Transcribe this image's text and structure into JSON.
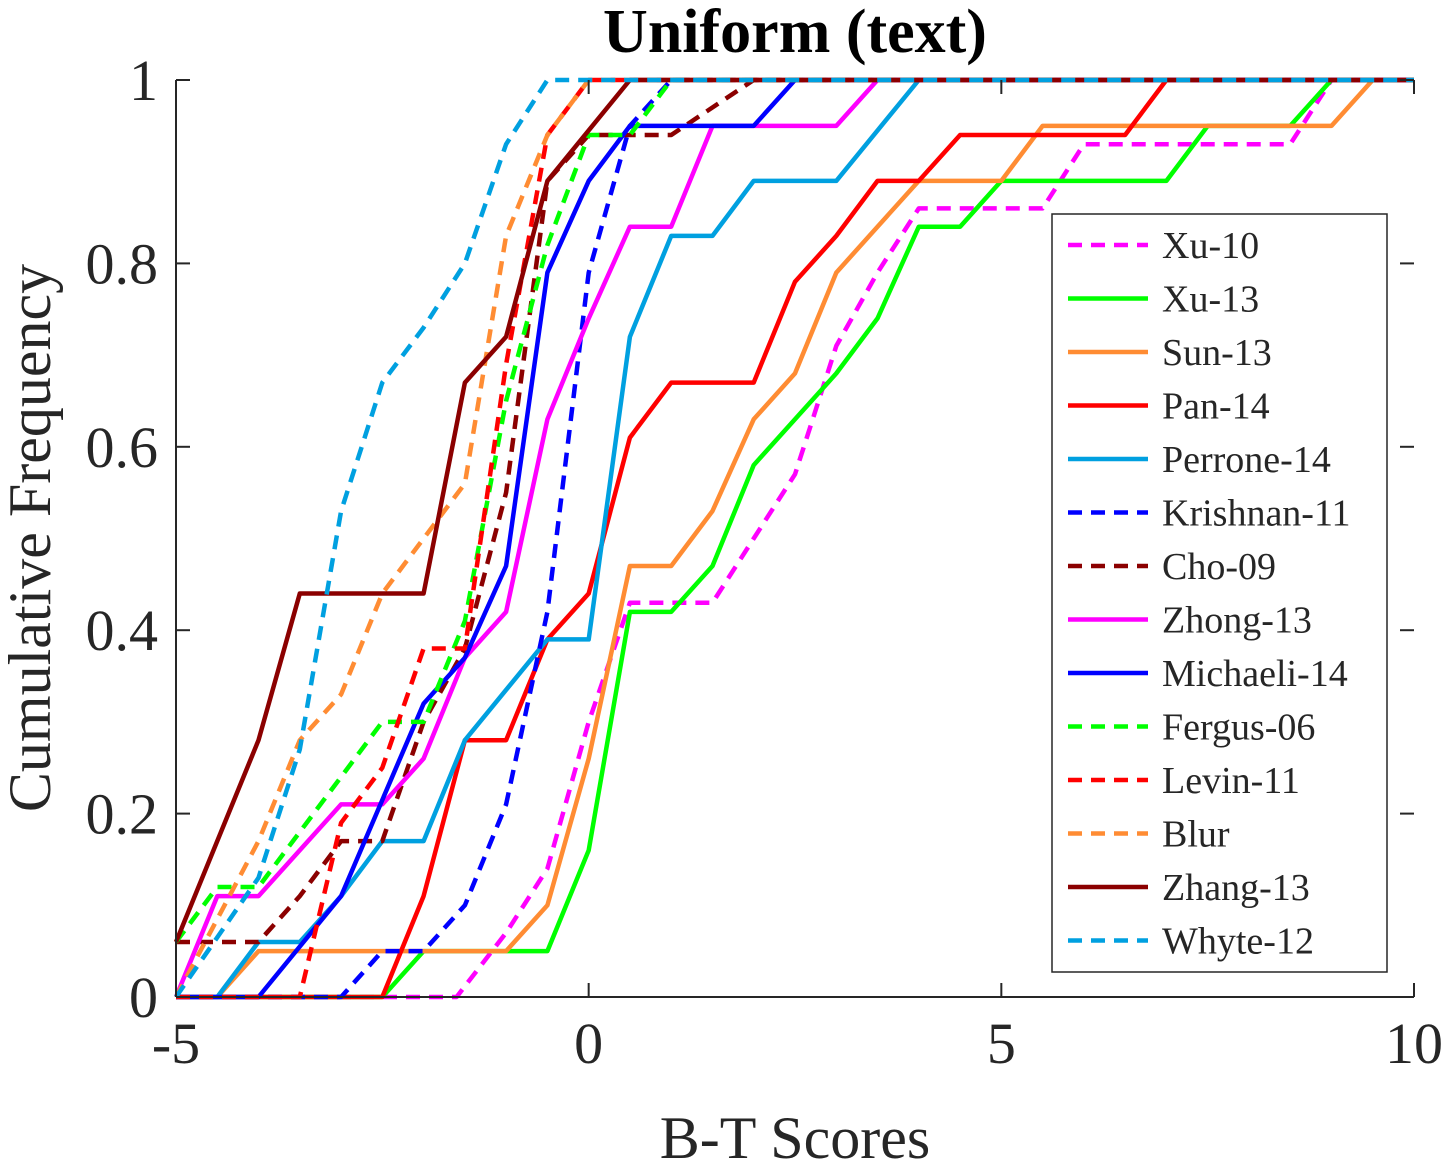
{
  "chart_data": {
    "type": "line",
    "title": "Uniform (text)",
    "xlabel": "B-T Scores",
    "ylabel": "Cumulative Frequency",
    "xlim": [
      -5,
      10
    ],
    "ylim": [
      0,
      1
    ],
    "x_ticks": [
      -5,
      0,
      5,
      10
    ],
    "y_ticks": [
      0,
      0.2,
      0.4,
      0.6,
      0.8,
      1
    ],
    "x_tick_labels": [
      "-5",
      "0",
      "5",
      "10"
    ],
    "y_tick_labels": [
      "0",
      "0.2",
      "0.4",
      "0.6",
      "0.8",
      "1"
    ],
    "grid": false,
    "legend_position": "right",
    "series": [
      {
        "name": "Xu-10",
        "color": "#FF00FF",
        "dashed": true,
        "points": [
          [
            -5,
            0
          ],
          [
            -1.6,
            0
          ],
          [
            -1,
            0.07
          ],
          [
            -0.5,
            0.14
          ],
          [
            0,
            0.3
          ],
          [
            0.5,
            0.43
          ],
          [
            1.5,
            0.43
          ],
          [
            2,
            0.5
          ],
          [
            2.5,
            0.57
          ],
          [
            3,
            0.71
          ],
          [
            3.5,
            0.79
          ],
          [
            4,
            0.86
          ],
          [
            5.5,
            0.86
          ],
          [
            6,
            0.93
          ],
          [
            8.5,
            0.93
          ],
          [
            9,
            1
          ],
          [
            10,
            1
          ]
        ]
      },
      {
        "name": "Xu-13",
        "color": "#00FF00",
        "dashed": false,
        "points": [
          [
            -5,
            0
          ],
          [
            -2.5,
            0
          ],
          [
            -2,
            0.05
          ],
          [
            -0.5,
            0.05
          ],
          [
            0,
            0.16
          ],
          [
            0.5,
            0.42
          ],
          [
            1,
            0.42
          ],
          [
            1.5,
            0.47
          ],
          [
            2,
            0.58
          ],
          [
            2.5,
            0.63
          ],
          [
            3,
            0.68
          ],
          [
            3.5,
            0.74
          ],
          [
            4,
            0.84
          ],
          [
            4.5,
            0.84
          ],
          [
            5,
            0.89
          ],
          [
            7,
            0.89
          ],
          [
            7.5,
            0.95
          ],
          [
            8.5,
            0.95
          ],
          [
            9,
            1
          ],
          [
            10,
            1
          ]
        ]
      },
      {
        "name": "Sun-13",
        "color": "#FF8C33",
        "dashed": false,
        "points": [
          [
            -5,
            0
          ],
          [
            -4.5,
            0
          ],
          [
            -4,
            0.05
          ],
          [
            -1,
            0.05
          ],
          [
            -0.5,
            0.1
          ],
          [
            0,
            0.26
          ],
          [
            0.5,
            0.47
          ],
          [
            1,
            0.47
          ],
          [
            1.5,
            0.53
          ],
          [
            2,
            0.63
          ],
          [
            2.5,
            0.68
          ],
          [
            3,
            0.79
          ],
          [
            3.5,
            0.84
          ],
          [
            4,
            0.89
          ],
          [
            5,
            0.89
          ],
          [
            5.5,
            0.95
          ],
          [
            9,
            0.95
          ],
          [
            9.5,
            1
          ],
          [
            10,
            1
          ]
        ]
      },
      {
        "name": "Pan-14",
        "color": "#FF0000",
        "dashed": false,
        "points": [
          [
            -5,
            0
          ],
          [
            -2.5,
            0
          ],
          [
            -2,
            0.11
          ],
          [
            -1.5,
            0.28
          ],
          [
            -1,
            0.28
          ],
          [
            -0.5,
            0.39
          ],
          [
            0,
            0.44
          ],
          [
            0.5,
            0.61
          ],
          [
            1,
            0.67
          ],
          [
            2,
            0.67
          ],
          [
            2.5,
            0.78
          ],
          [
            3,
            0.83
          ],
          [
            3.5,
            0.89
          ],
          [
            4,
            0.89
          ],
          [
            4.5,
            0.94
          ],
          [
            6.5,
            0.94
          ],
          [
            7,
            1
          ],
          [
            10,
            1
          ]
        ]
      },
      {
        "name": "Perrone-14",
        "color": "#00A0E0",
        "dashed": false,
        "points": [
          [
            -5,
            0
          ],
          [
            -4.5,
            0
          ],
          [
            -4,
            0.06
          ],
          [
            -3.5,
            0.06
          ],
          [
            -3,
            0.11
          ],
          [
            -2.5,
            0.17
          ],
          [
            -2,
            0.17
          ],
          [
            -1.5,
            0.28
          ],
          [
            -0.5,
            0.39
          ],
          [
            0,
            0.39
          ],
          [
            0.5,
            0.72
          ],
          [
            1,
            0.83
          ],
          [
            1.5,
            0.83
          ],
          [
            2,
            0.89
          ],
          [
            3,
            0.89
          ],
          [
            4,
            1
          ],
          [
            10,
            1
          ]
        ]
      },
      {
        "name": "Krishnan-11",
        "color": "#0000FF",
        "dashed": true,
        "points": [
          [
            -5,
            0
          ],
          [
            -3,
            0
          ],
          [
            -2.5,
            0.05
          ],
          [
            -2,
            0.05
          ],
          [
            -1.5,
            0.1
          ],
          [
            -1,
            0.21
          ],
          [
            -0.5,
            0.42
          ],
          [
            0,
            0.79
          ],
          [
            0.5,
            0.95
          ],
          [
            1,
            1
          ],
          [
            10,
            1
          ]
        ]
      },
      {
        "name": "Cho-09",
        "color": "#8B0000",
        "dashed": true,
        "points": [
          [
            -5,
            0.06
          ],
          [
            -4,
            0.06
          ],
          [
            -3.5,
            0.11
          ],
          [
            -3,
            0.17
          ],
          [
            -2.5,
            0.17
          ],
          [
            -2,
            0.3
          ],
          [
            -1.5,
            0.38
          ],
          [
            -1,
            0.55
          ],
          [
            -0.5,
            0.89
          ],
          [
            0,
            0.94
          ],
          [
            1,
            0.94
          ],
          [
            2,
            1
          ],
          [
            10,
            1
          ]
        ]
      },
      {
        "name": "Zhong-13",
        "color": "#FF00FF",
        "dashed": false,
        "points": [
          [
            -5,
            0
          ],
          [
            -4.5,
            0.11
          ],
          [
            -4,
            0.11
          ],
          [
            -3,
            0.21
          ],
          [
            -2.5,
            0.21
          ],
          [
            -2,
            0.26
          ],
          [
            -1.5,
            0.37
          ],
          [
            -1,
            0.42
          ],
          [
            -0.5,
            0.63
          ],
          [
            0,
            0.74
          ],
          [
            0.5,
            0.84
          ],
          [
            1,
            0.84
          ],
          [
            1.5,
            0.95
          ],
          [
            3,
            0.95
          ],
          [
            3.5,
            1
          ],
          [
            10,
            1
          ]
        ]
      },
      {
        "name": "Michaeli-14",
        "color": "#0000FF",
        "dashed": false,
        "points": [
          [
            -5,
            0
          ],
          [
            -4,
            0
          ],
          [
            -3,
            0.11
          ],
          [
            -2,
            0.32
          ],
          [
            -1.5,
            0.37
          ],
          [
            -1,
            0.47
          ],
          [
            -0.5,
            0.79
          ],
          [
            0,
            0.89
          ],
          [
            0.5,
            0.95
          ],
          [
            2,
            0.95
          ],
          [
            2.5,
            1
          ],
          [
            10,
            1
          ]
        ]
      },
      {
        "name": "Fergus-06",
        "color": "#00FF00",
        "dashed": true,
        "points": [
          [
            -5,
            0.06
          ],
          [
            -4.5,
            0.12
          ],
          [
            -4,
            0.12
          ],
          [
            -3,
            0.24
          ],
          [
            -2.5,
            0.3
          ],
          [
            -2,
            0.3
          ],
          [
            -1.5,
            0.41
          ],
          [
            -1,
            0.65
          ],
          [
            -0.5,
            0.82
          ],
          [
            0,
            0.94
          ],
          [
            0.5,
            0.94
          ],
          [
            1,
            1
          ],
          [
            10,
            1
          ]
        ]
      },
      {
        "name": "Levin-11",
        "color": "#FF0000",
        "dashed": true,
        "points": [
          [
            -5,
            0
          ],
          [
            -3.5,
            0
          ],
          [
            -3,
            0.19
          ],
          [
            -2.5,
            0.25
          ],
          [
            -2,
            0.38
          ],
          [
            -1.5,
            0.38
          ],
          [
            -1,
            0.69
          ],
          [
            -0.5,
            0.94
          ],
          [
            0,
            1
          ],
          [
            10,
            1
          ]
        ]
      },
      {
        "name": "Blur",
        "color": "#FF8C33",
        "dashed": true,
        "points": [
          [
            -5,
            0
          ],
          [
            -4,
            0.17
          ],
          [
            -3.5,
            0.28
          ],
          [
            -3,
            0.33
          ],
          [
            -2.5,
            0.44
          ],
          [
            -2,
            0.5
          ],
          [
            -1.5,
            0.56
          ],
          [
            -1,
            0.83
          ],
          [
            -0.5,
            0.94
          ],
          [
            0,
            1
          ],
          [
            10,
            1
          ]
        ]
      },
      {
        "name": "Zhang-13",
        "color": "#8B0000",
        "dashed": false,
        "points": [
          [
            -5,
            0.06
          ],
          [
            -4,
            0.28
          ],
          [
            -3.5,
            0.44
          ],
          [
            -2,
            0.44
          ],
          [
            -1.5,
            0.67
          ],
          [
            -1,
            0.72
          ],
          [
            -0.5,
            0.89
          ],
          [
            0.5,
            1
          ],
          [
            10,
            1
          ]
        ]
      },
      {
        "name": "Whyte-12",
        "color": "#00A0E0",
        "dashed": true,
        "points": [
          [
            -5,
            0
          ],
          [
            -4,
            0.13
          ],
          [
            -3.5,
            0.27
          ],
          [
            -3,
            0.53
          ],
          [
            -2.5,
            0.67
          ],
          [
            -2,
            0.73
          ],
          [
            -1.5,
            0.8
          ],
          [
            -1,
            0.93
          ],
          [
            -0.5,
            1
          ],
          [
            10,
            1
          ]
        ]
      }
    ]
  }
}
